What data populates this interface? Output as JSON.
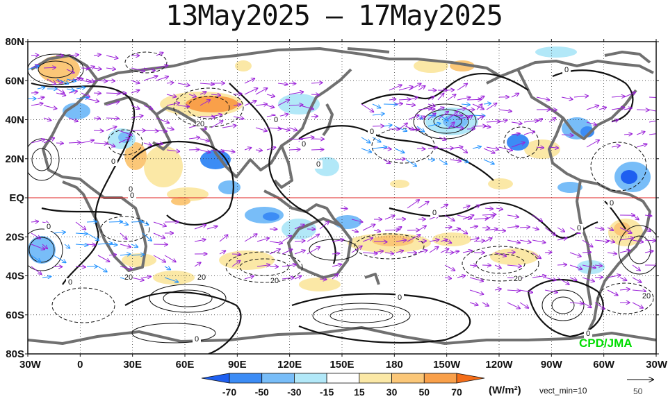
{
  "title": "13May2025 – 17May2025",
  "lat_labels": [
    {
      "label": "80N",
      "lat": 80
    },
    {
      "label": "60N",
      "lat": 60
    },
    {
      "label": "40N",
      "lat": 40
    },
    {
      "label": "20N",
      "lat": 20
    },
    {
      "label": "EQ",
      "lat": 0
    },
    {
      "label": "20S",
      "lat": -20
    },
    {
      "label": "40S",
      "lat": -40
    },
    {
      "label": "60S",
      "lat": -60
    },
    {
      "label": "80S",
      "lat": -80
    }
  ],
  "lon_labels": [
    {
      "label": "30W",
      "lon": -30
    },
    {
      "label": "0",
      "lon": 0
    },
    {
      "label": "30E",
      "lon": 30
    },
    {
      "label": "60E",
      "lon": 60
    },
    {
      "label": "90E",
      "lon": 90
    },
    {
      "label": "120E",
      "lon": 120
    },
    {
      "label": "150E",
      "lon": 150
    },
    {
      "label": "180",
      "lon": 180
    },
    {
      "label": "150W",
      "lon": 210
    },
    {
      "label": "120W",
      "lon": 240
    },
    {
      "label": "90W",
      "lon": 270
    },
    {
      "label": "60W",
      "lon": 300
    },
    {
      "label": "30W",
      "lon": 330
    }
  ],
  "colorbar": {
    "ticks": [
      "-70",
      "-50",
      "-30",
      "-15",
      "15",
      "30",
      "50",
      "70"
    ],
    "colors": [
      "#1e5ff0",
      "#3c8cf5",
      "#78bdf8",
      "#b2e8f8",
      "#ffffff",
      "#fbe8a6",
      "#fbc778",
      "#f9a04a",
      "#f46d18"
    ],
    "unit": "(W/m²)",
    "vect_min": "vect_min=10",
    "ref_vector": "50"
  },
  "credit": "CPD/JMA",
  "contour_labels": [
    "0",
    "20",
    "0",
    "0",
    "0",
    "0",
    "0",
    "0",
    "0",
    "0",
    "0",
    "20",
    "20",
    "20",
    "0",
    "20",
    "0",
    "0",
    "20",
    "0",
    "0",
    "0"
  ],
  "colors": {
    "equator": "#e02020",
    "coast": "#707070",
    "vector": "#9a20d8",
    "vector_alt": "#1e90ff"
  }
}
